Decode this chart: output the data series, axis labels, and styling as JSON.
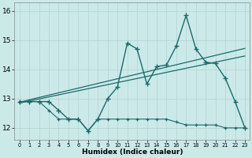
{
  "xlabel": "Humidex (Indice chaleur)",
  "xlim": [
    -0.5,
    23.5
  ],
  "ylim": [
    11.6,
    16.3
  ],
  "yticks": [
    12,
    13,
    14,
    15,
    16
  ],
  "xticks": [
    0,
    1,
    2,
    3,
    4,
    5,
    6,
    7,
    8,
    9,
    10,
    11,
    12,
    13,
    14,
    15,
    16,
    17,
    18,
    19,
    20,
    21,
    22,
    23
  ],
  "background_color": "#cce9e9",
  "grid_color": "#b0d4d4",
  "line_color": "#1a6b6b",
  "series": {
    "main": [
      12.9,
      12.9,
      12.9,
      12.9,
      12.6,
      12.3,
      12.3,
      11.9,
      12.3,
      13.0,
      13.4,
      14.9,
      14.7,
      13.5,
      14.1,
      14.15,
      14.8,
      15.85,
      14.7,
      14.25,
      14.2,
      13.7,
      12.9,
      12.0
    ],
    "trend1": [
      12.87,
      12.96,
      13.04,
      13.12,
      13.2,
      13.28,
      13.36,
      13.44,
      13.52,
      13.6,
      13.68,
      13.76,
      13.84,
      13.92,
      14.0,
      14.08,
      14.16,
      14.24,
      14.32,
      14.4,
      14.48,
      14.56,
      14.64,
      14.72
    ],
    "trend2": [
      12.85,
      12.92,
      12.99,
      13.06,
      13.13,
      13.2,
      13.27,
      13.34,
      13.41,
      13.48,
      13.55,
      13.62,
      13.69,
      13.76,
      13.83,
      13.9,
      13.97,
      14.04,
      14.11,
      14.18,
      14.25,
      14.32,
      14.39,
      14.46
    ],
    "min_line": [
      12.9,
      12.9,
      12.9,
      12.6,
      12.3,
      12.3,
      12.3,
      11.9,
      12.3,
      12.3,
      12.3,
      12.3,
      12.3,
      12.3,
      12.3,
      12.3,
      12.2,
      12.1,
      12.1,
      12.1,
      12.1,
      12.0,
      12.0,
      12.0
    ]
  }
}
